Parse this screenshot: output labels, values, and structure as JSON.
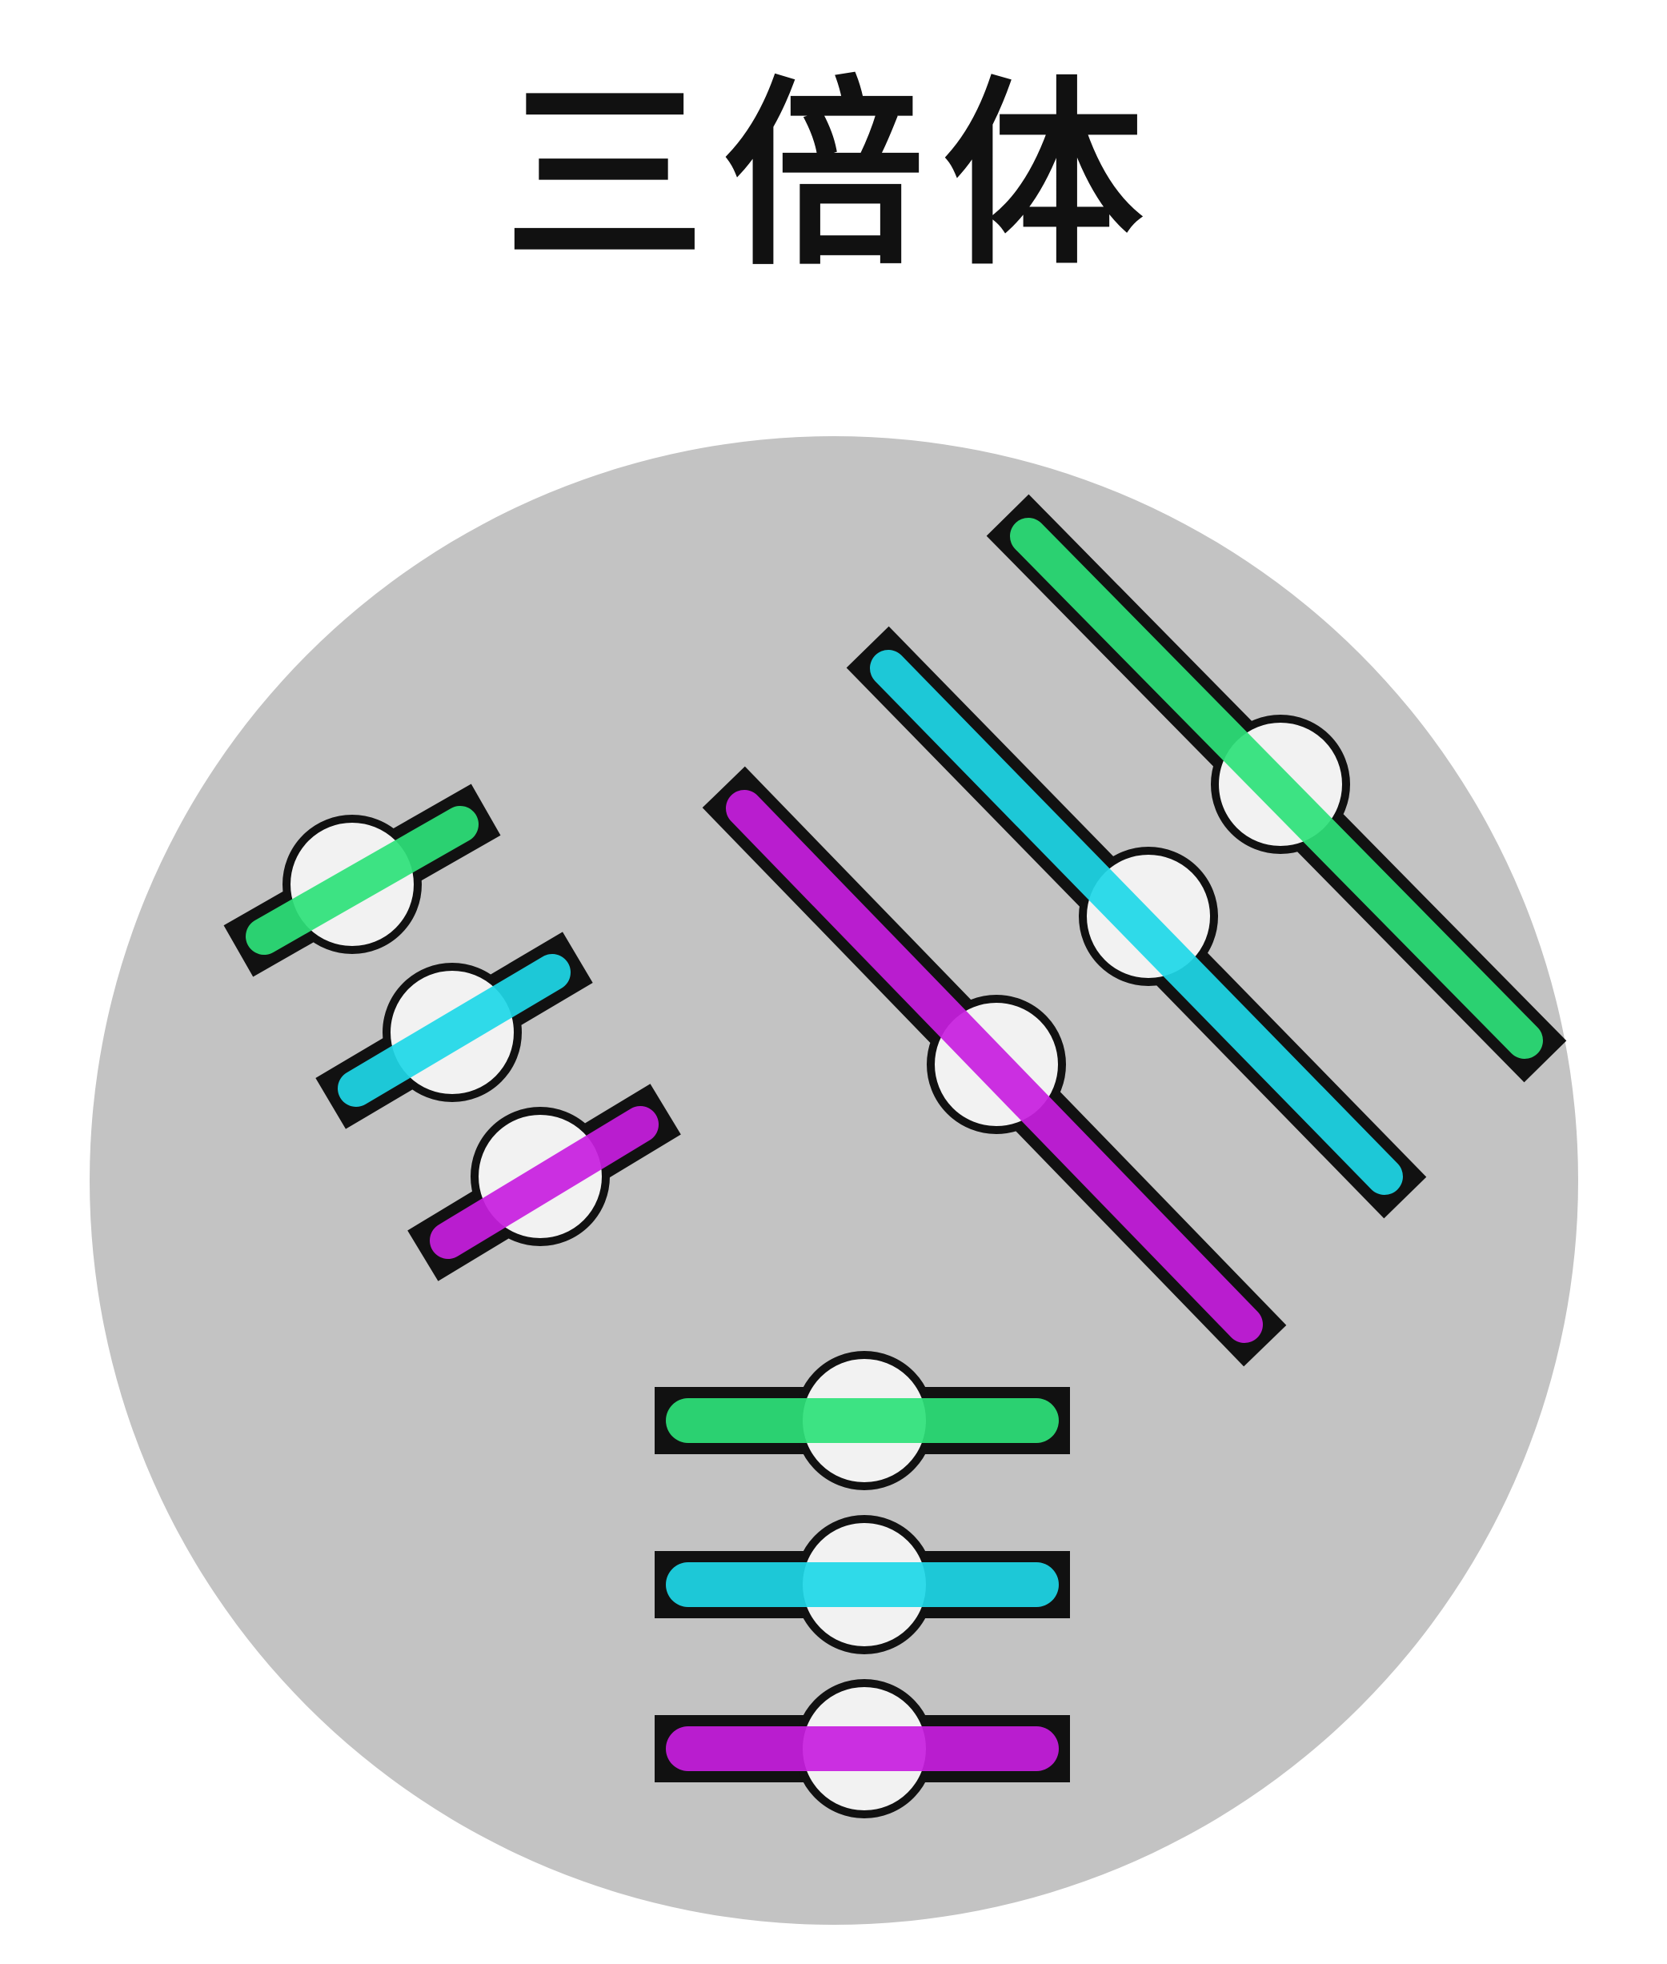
{
  "title": "三倍体",
  "colors": {
    "background": "#ffffff",
    "cell": "#c3c3c3",
    "outline": "#111111",
    "centromere": "#f2f2f2",
    "green": "#2ee27a",
    "cyan": "#1ed8e8",
    "magenta": "#c81ee0"
  },
  "chromosome_groups": [
    {
      "name": "short-chromosome-set",
      "members": [
        {
          "name": "green",
          "color": "green"
        },
        {
          "name": "cyan",
          "color": "cyan"
        },
        {
          "name": "magenta",
          "color": "magenta"
        }
      ]
    },
    {
      "name": "long-chromosome-set",
      "members": [
        {
          "name": "magenta",
          "color": "magenta"
        },
        {
          "name": "cyan",
          "color": "cyan"
        },
        {
          "name": "green",
          "color": "green"
        }
      ]
    },
    {
      "name": "horizontal-chromosome-set",
      "members": [
        {
          "name": "green",
          "color": "green"
        },
        {
          "name": "cyan",
          "color": "cyan"
        },
        {
          "name": "magenta",
          "color": "magenta"
        }
      ]
    }
  ]
}
